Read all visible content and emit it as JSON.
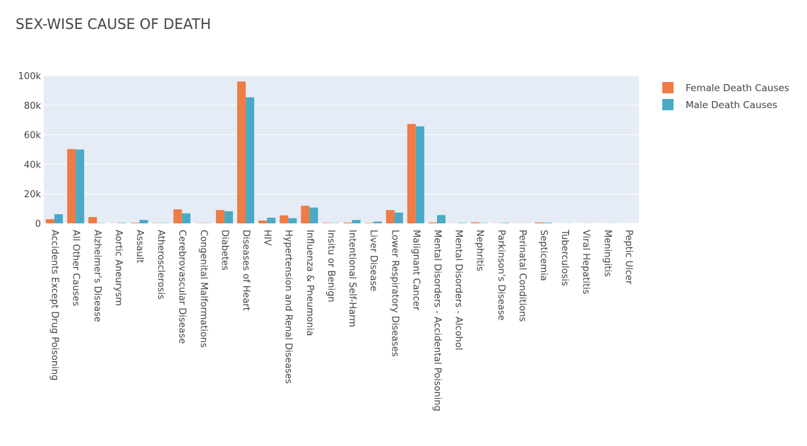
{
  "chart_data": {
    "type": "bar",
    "title": "SEX-WISE CAUSE OF DEATH",
    "xlabel": "",
    "ylabel": "",
    "ylim": [
      0,
      100000
    ],
    "yticks": [
      0,
      20000,
      40000,
      60000,
      80000,
      100000
    ],
    "ytick_labels": [
      "0",
      "20k",
      "40k",
      "60k",
      "80k",
      "100k"
    ],
    "grid": true,
    "legend_position": "top-right",
    "categories": [
      "Accidents Except Drug Poisoning",
      "All Other Causes",
      "Alzheimer's Disease",
      "Aortic Aneurysm",
      "Assault",
      "Atherosclerosis",
      "Cerebrovascular Disease",
      "Congenital Malformations",
      "Diabetes",
      "Diseases of Heart",
      "HIV",
      "Hypertension and Renal Diseases",
      "Influenza & Pneumonia",
      "Insitu or Benign",
      "Intentional Self-Harm",
      "Liver Disease",
      "Lower Respiratory Diseases",
      "Malignant Cancer",
      "Mental Disorders - Accidental Poisoning",
      "Mental Disorders - Alcohol",
      "Nephritis",
      "Parkinson's Disease",
      "Perinatal Conditions",
      "Septicemia",
      "Tuberculosis",
      "Viral Hepatitis",
      "Meningitis",
      "Peptic Ulcer"
    ],
    "series": [
      {
        "name": "Female Death Causes",
        "color": "#ef7b45",
        "values": [
          2800,
          50300,
          4300,
          100,
          400,
          200,
          9500,
          200,
          9000,
          96000,
          1900,
          5400,
          11900,
          300,
          500,
          300,
          9000,
          67300,
          600,
          100,
          700,
          100,
          100,
          600,
          50,
          50,
          50,
          50
        ]
      },
      {
        "name": "Male Death Causes",
        "color": "#4aaac5",
        "values": [
          6200,
          50000,
          200,
          300,
          2300,
          200,
          6800,
          200,
          8200,
          85300,
          3800,
          3500,
          10700,
          200,
          2300,
          1200,
          7300,
          65700,
          5600,
          300,
          200,
          300,
          100,
          400,
          100,
          100,
          100,
          50
        ]
      }
    ]
  }
}
